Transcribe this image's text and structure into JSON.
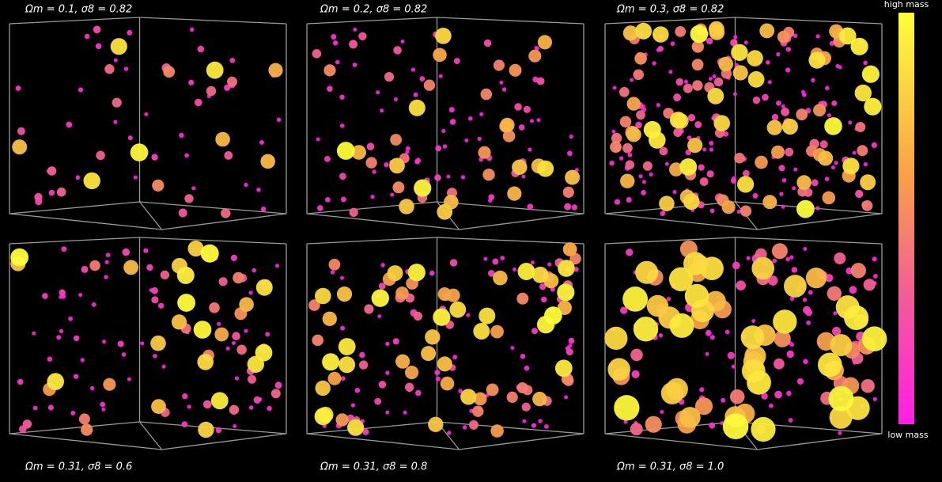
{
  "panels": [
    {
      "label": "Ωm = 0.1, σ8 = 0.82"
    },
    {
      "label": "Ωm = 0.2, σ8 = 0.82"
    },
    {
      "label": "Ωm = 0.3, σ8 = 0.82"
    },
    {
      "label": "Ωm = 0.31, σ8 = 0.6"
    },
    {
      "label": "Ωm = 0.31, σ8 = 0.8"
    },
    {
      "label": "Ωm = 0.31, σ8 = 1.0"
    }
  ],
  "colorbar": {
    "top_label": "high mass",
    "bottom_label": "low mass"
  }
}
